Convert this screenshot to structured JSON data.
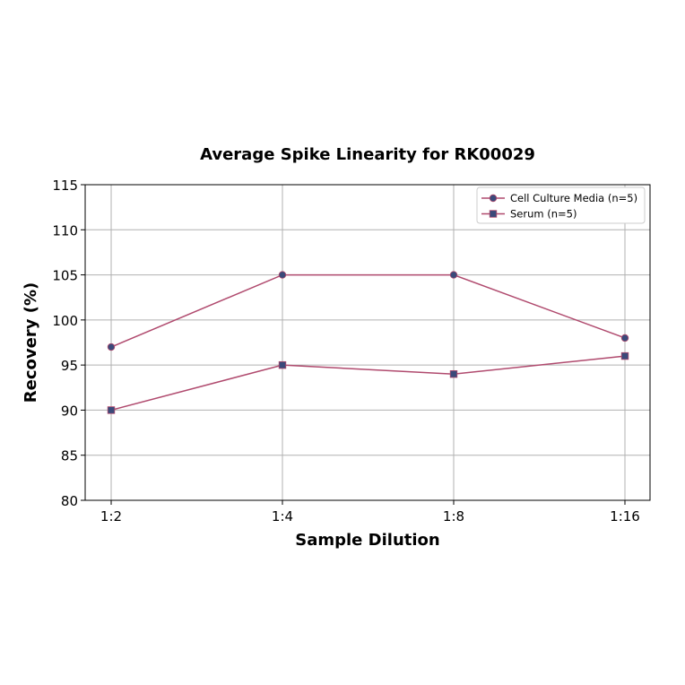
{
  "chart_data": {
    "type": "line",
    "title": "Average Spike Linearity for RK00029",
    "xlabel": "Sample Dilution",
    "ylabel": "Recovery (%)",
    "categories": [
      "1:2",
      "1:4",
      "1:8",
      "1:16"
    ],
    "ylim": [
      80,
      115
    ],
    "yticks": [
      80,
      85,
      90,
      95,
      100,
      105,
      110,
      115
    ],
    "grid": true,
    "legend_position": "upper right",
    "series": [
      {
        "name": "Cell Culture Media (n=5)",
        "marker": "circle",
        "values": [
          97,
          105,
          105,
          98
        ],
        "line_color": "#b04a6e",
        "marker_color": "#3b4a7a"
      },
      {
        "name": "Serum (n=5)",
        "marker": "square",
        "values": [
          90,
          95,
          94,
          96
        ],
        "line_color": "#b04a6e",
        "marker_color": "#3b4a7a"
      }
    ]
  }
}
